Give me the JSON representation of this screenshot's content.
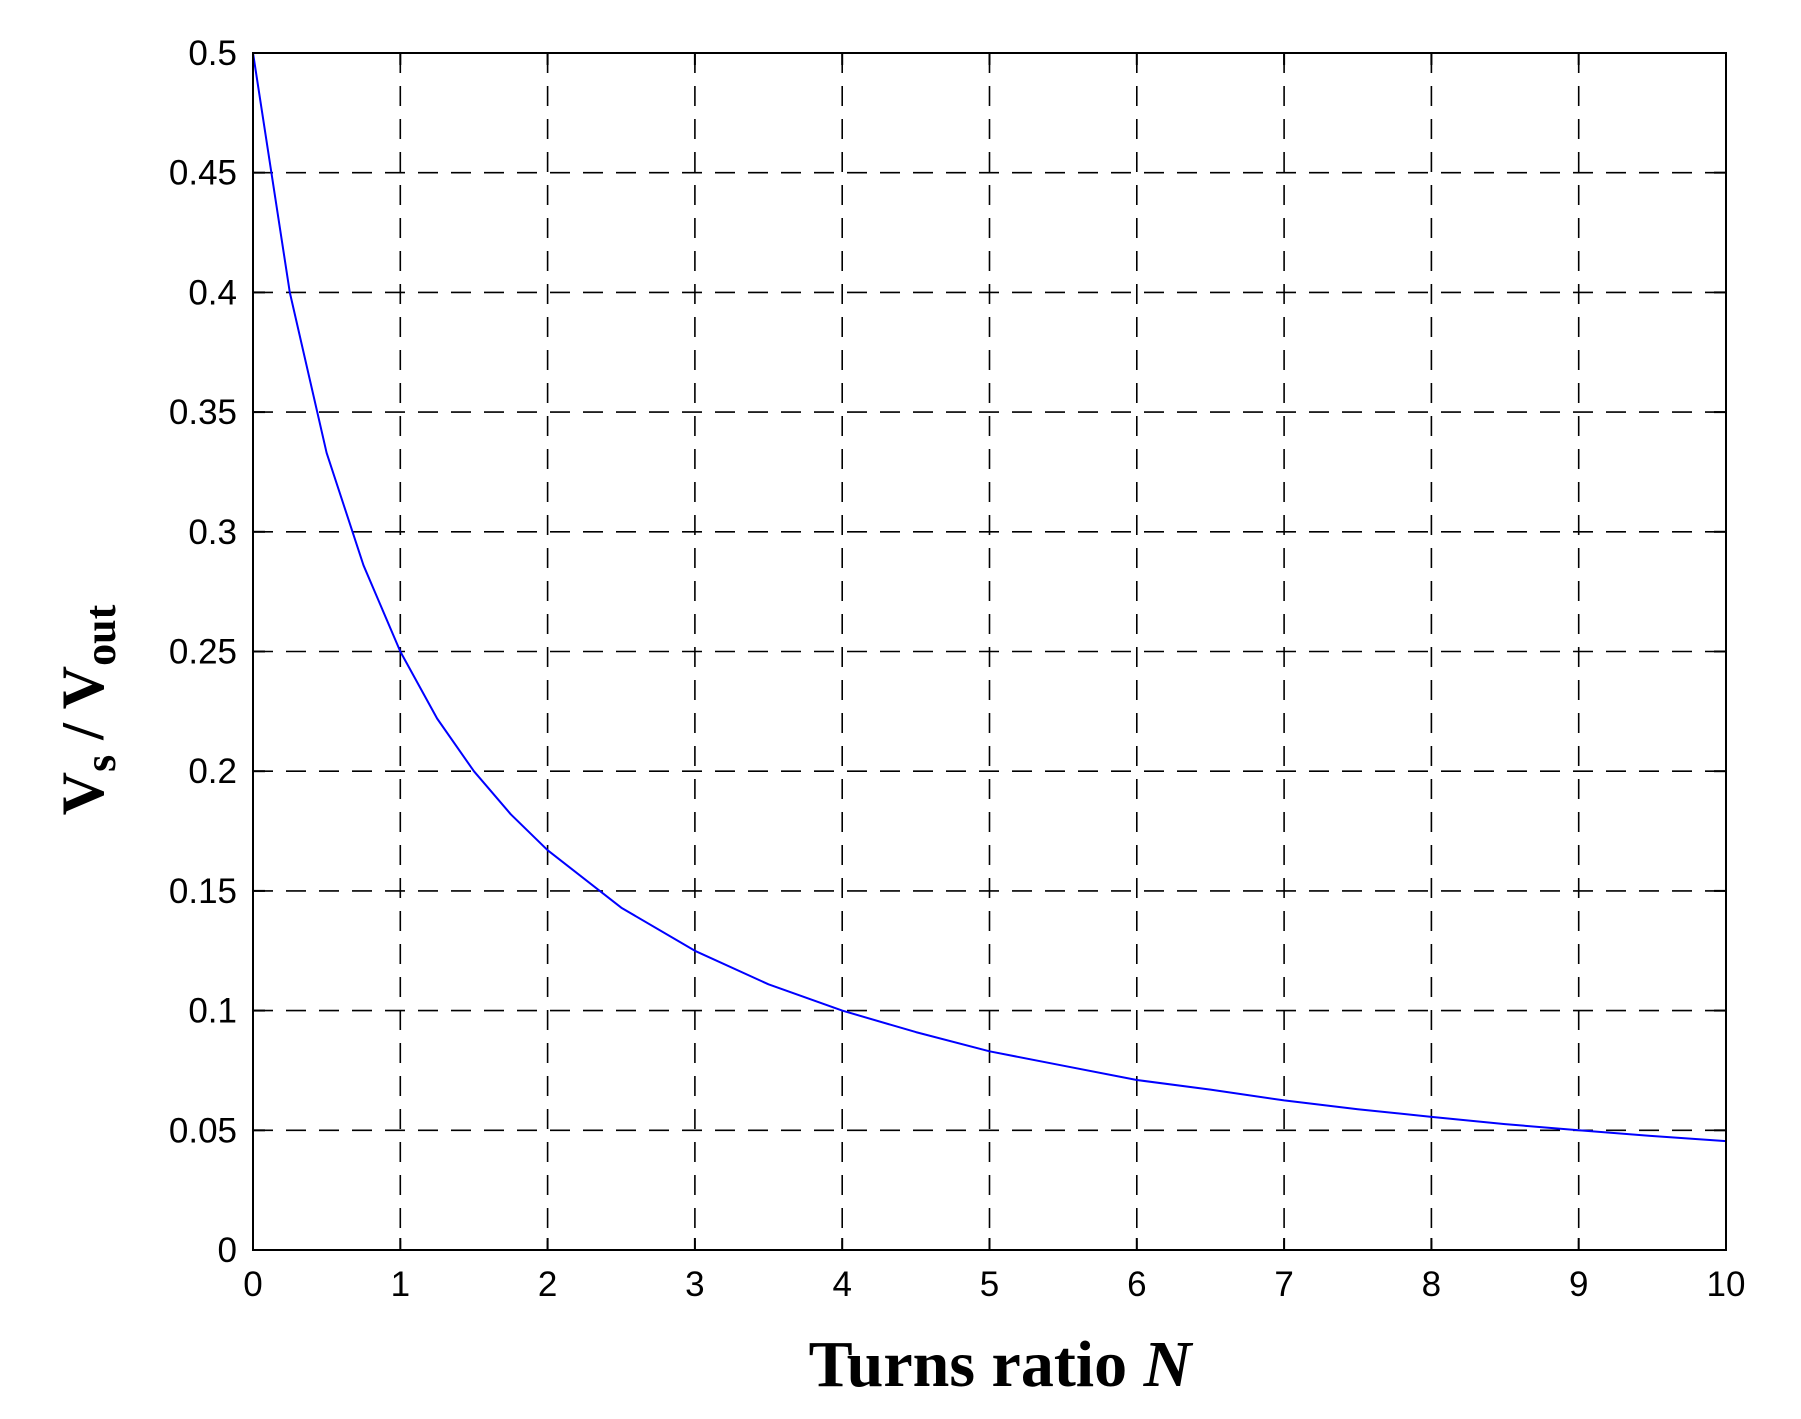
{
  "chart_data": {
    "type": "line",
    "title": "",
    "xlabel": {
      "main": "Turns ratio ",
      "italic": "N"
    },
    "ylabel": {
      "v1": "V",
      "sub1": "s",
      "sep": " / ",
      "v2": "V",
      "sub2": "out"
    },
    "xlim": [
      0,
      10
    ],
    "ylim": [
      0,
      0.5
    ],
    "x_ticks": [
      0,
      1,
      2,
      3,
      4,
      5,
      6,
      7,
      8,
      9,
      10
    ],
    "x_tick_labels": [
      "0",
      "1",
      "2",
      "3",
      "4",
      "5",
      "6",
      "7",
      "8",
      "9",
      "10"
    ],
    "y_ticks": [
      0,
      0.05,
      0.1,
      0.15,
      0.2,
      0.25,
      0.3,
      0.35,
      0.4,
      0.45,
      0.5
    ],
    "y_tick_labels": [
      "0",
      "0.05",
      "0.1",
      "0.15",
      "0.2",
      "0.25",
      "0.3",
      "0.35",
      "0.4",
      "0.45",
      "0.5"
    ],
    "grid": true,
    "series": [
      {
        "color": "#0000ff",
        "x": [
          0,
          0.25,
          0.5,
          0.75,
          1,
          1.25,
          1.5,
          1.75,
          2,
          2.5,
          3,
          3.5,
          4,
          4.5,
          5,
          5.5,
          6,
          6.5,
          7,
          7.5,
          8,
          8.5,
          9,
          9.5,
          10
        ],
        "y": [
          0.5,
          0.4,
          0.333,
          0.286,
          0.25,
          0.222,
          0.2,
          0.182,
          0.167,
          0.143,
          0.125,
          0.111,
          0.1,
          0.091,
          0.083,
          0.077,
          0.071,
          0.067,
          0.0625,
          0.0588,
          0.0556,
          0.0526,
          0.05,
          0.0476,
          0.0455
        ]
      }
    ]
  }
}
